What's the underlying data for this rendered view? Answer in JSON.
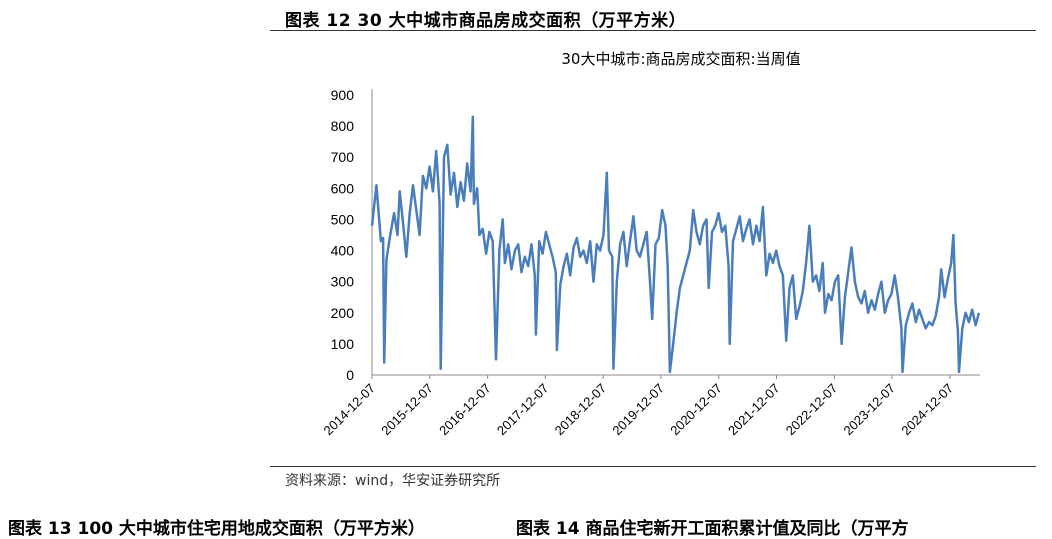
{
  "header": {
    "figure_title": "图表 12 30 大中城市商品房成交面积（万平方米）",
    "source": "资料来源：wind，华安证券研究所"
  },
  "footer": {
    "next_left": "图表 13 100 大中城市住宅用地成交面积（万平方米）",
    "next_right": "图表 14 商品住宅新开工面积累计值及同比（万平方"
  },
  "chart_data": {
    "type": "line",
    "title": "30大中城市:商品房成交面积:当周值",
    "xlabel": "",
    "ylabel": "",
    "ylim": [
      0,
      900
    ],
    "yticks": [
      0,
      100,
      200,
      300,
      400,
      500,
      600,
      700,
      800,
      900
    ],
    "xlim": [
      "2014-12-07",
      "2025-06-15"
    ],
    "xticks": [
      "2014-12-07",
      "2015-12-07",
      "2016-12-07",
      "2017-12-07",
      "2018-12-07",
      "2019-12-07",
      "2020-12-07",
      "2021-12-07",
      "2022-12-07",
      "2023-12-07",
      "2024-12-07"
    ],
    "grid": false,
    "legend": "none",
    "line_color": "#4a7ebb",
    "series": [
      {
        "name": "",
        "points": [
          [
            "2014-12-07",
            480
          ],
          [
            "2015-01-04",
            610
          ],
          [
            "2015-02-01",
            430
          ],
          [
            "2015-02-15",
            440
          ],
          [
            "2015-02-22",
            40
          ],
          [
            "2015-03-08",
            370
          ],
          [
            "2015-03-29",
            440
          ],
          [
            "2015-04-26",
            520
          ],
          [
            "2015-05-17",
            450
          ],
          [
            "2015-05-31",
            590
          ],
          [
            "2015-06-21",
            490
          ],
          [
            "2015-07-12",
            380
          ],
          [
            "2015-08-02",
            520
          ],
          [
            "2015-08-23",
            610
          ],
          [
            "2015-09-13",
            530
          ],
          [
            "2015-10-04",
            450
          ],
          [
            "2015-10-25",
            640
          ],
          [
            "2015-11-15",
            600
          ],
          [
            "2015-12-06",
            670
          ],
          [
            "2015-12-27",
            590
          ],
          [
            "2016-01-17",
            720
          ],
          [
            "2016-02-07",
            550
          ],
          [
            "2016-02-14",
            20
          ],
          [
            "2016-03-06",
            700
          ],
          [
            "2016-03-27",
            740
          ],
          [
            "2016-04-17",
            580
          ],
          [
            "2016-05-08",
            650
          ],
          [
            "2016-05-29",
            540
          ],
          [
            "2016-06-19",
            620
          ],
          [
            "2016-07-10",
            560
          ],
          [
            "2016-07-31",
            680
          ],
          [
            "2016-08-21",
            590
          ],
          [
            "2016-09-04",
            830
          ],
          [
            "2016-09-11",
            550
          ],
          [
            "2016-10-02",
            600
          ],
          [
            "2016-10-16",
            450
          ],
          [
            "2016-11-06",
            470
          ],
          [
            "2016-11-27",
            390
          ],
          [
            "2016-12-18",
            460
          ],
          [
            "2017-01-08",
            430
          ],
          [
            "2017-01-29",
            50
          ],
          [
            "2017-02-19",
            400
          ],
          [
            "2017-03-12",
            500
          ],
          [
            "2017-03-26",
            360
          ],
          [
            "2017-04-16",
            420
          ],
          [
            "2017-05-07",
            340
          ],
          [
            "2017-05-28",
            400
          ],
          [
            "2017-06-18",
            420
          ],
          [
            "2017-07-09",
            330
          ],
          [
            "2017-07-30",
            380
          ],
          [
            "2017-08-20",
            350
          ],
          [
            "2017-09-10",
            420
          ],
          [
            "2017-10-01",
            320
          ],
          [
            "2017-10-08",
            130
          ],
          [
            "2017-10-29",
            430
          ],
          [
            "2017-11-19",
            390
          ],
          [
            "2017-12-10",
            460
          ],
          [
            "2017-12-31",
            420
          ],
          [
            "2018-01-21",
            380
          ],
          [
            "2018-02-11",
            330
          ],
          [
            "2018-02-18",
            80
          ],
          [
            "2018-03-11",
            290
          ],
          [
            "2018-04-01",
            350
          ],
          [
            "2018-04-22",
            390
          ],
          [
            "2018-05-13",
            320
          ],
          [
            "2018-06-03",
            410
          ],
          [
            "2018-06-24",
            440
          ],
          [
            "2018-07-15",
            380
          ],
          [
            "2018-08-05",
            400
          ],
          [
            "2018-08-26",
            360
          ],
          [
            "2018-09-16",
            430
          ],
          [
            "2018-10-07",
            300
          ],
          [
            "2018-10-28",
            420
          ],
          [
            "2018-11-18",
            400
          ],
          [
            "2018-12-09",
            450
          ],
          [
            "2018-12-30",
            650
          ],
          [
            "2019-01-13",
            400
          ],
          [
            "2019-02-03",
            380
          ],
          [
            "2019-02-10",
            20
          ],
          [
            "2019-03-03",
            300
          ],
          [
            "2019-03-24",
            420
          ],
          [
            "2019-04-14",
            460
          ],
          [
            "2019-05-05",
            350
          ],
          [
            "2019-05-26",
            430
          ],
          [
            "2019-06-16",
            510
          ],
          [
            "2019-07-07",
            400
          ],
          [
            "2019-07-28",
            380
          ],
          [
            "2019-08-18",
            420
          ],
          [
            "2019-09-08",
            460
          ],
          [
            "2019-09-29",
            300
          ],
          [
            "2019-10-13",
            180
          ],
          [
            "2019-11-03",
            420
          ],
          [
            "2019-11-24",
            440
          ],
          [
            "2019-12-15",
            530
          ],
          [
            "2020-01-05",
            480
          ],
          [
            "2020-01-19",
            350
          ],
          [
            "2020-02-02",
            10
          ],
          [
            "2020-02-23",
            100
          ],
          [
            "2020-03-15",
            200
          ],
          [
            "2020-04-05",
            280
          ],
          [
            "2020-04-26",
            320
          ],
          [
            "2020-05-17",
            360
          ],
          [
            "2020-06-07",
            400
          ],
          [
            "2020-06-28",
            530
          ],
          [
            "2020-07-19",
            460
          ],
          [
            "2020-08-09",
            420
          ],
          [
            "2020-08-30",
            480
          ],
          [
            "2020-09-20",
            500
          ],
          [
            "2020-10-04",
            280
          ],
          [
            "2020-10-25",
            460
          ],
          [
            "2020-11-15",
            480
          ],
          [
            "2020-12-06",
            520
          ],
          [
            "2020-12-27",
            460
          ],
          [
            "2021-01-17",
            480
          ],
          [
            "2021-02-07",
            350
          ],
          [
            "2021-02-14",
            100
          ],
          [
            "2021-03-07",
            430
          ],
          [
            "2021-03-28",
            470
          ],
          [
            "2021-04-18",
            510
          ],
          [
            "2021-05-09",
            430
          ],
          [
            "2021-05-30",
            470
          ],
          [
            "2021-06-20",
            500
          ],
          [
            "2021-07-11",
            420
          ],
          [
            "2021-08-01",
            480
          ],
          [
            "2021-08-22",
            430
          ],
          [
            "2021-09-12",
            540
          ],
          [
            "2021-10-03",
            320
          ],
          [
            "2021-10-24",
            390
          ],
          [
            "2021-11-14",
            360
          ],
          [
            "2021-12-05",
            400
          ],
          [
            "2021-12-26",
            350
          ],
          [
            "2022-01-16",
            320
          ],
          [
            "2022-02-06",
            110
          ],
          [
            "2022-02-27",
            280
          ],
          [
            "2022-03-20",
            320
          ],
          [
            "2022-04-10",
            180
          ],
          [
            "2022-05-01",
            220
          ],
          [
            "2022-05-22",
            270
          ],
          [
            "2022-06-12",
            360
          ],
          [
            "2022-07-03",
            480
          ],
          [
            "2022-07-24",
            300
          ],
          [
            "2022-08-14",
            320
          ],
          [
            "2022-09-04",
            270
          ],
          [
            "2022-09-25",
            360
          ],
          [
            "2022-10-09",
            200
          ],
          [
            "2022-10-30",
            260
          ],
          [
            "2022-11-20",
            240
          ],
          [
            "2022-12-11",
            300
          ],
          [
            "2023-01-01",
            320
          ],
          [
            "2023-01-22",
            100
          ],
          [
            "2023-02-12",
            250
          ],
          [
            "2023-03-05",
            330
          ],
          [
            "2023-03-26",
            410
          ],
          [
            "2023-04-16",
            300
          ],
          [
            "2023-05-07",
            250
          ],
          [
            "2023-05-28",
            230
          ],
          [
            "2023-06-18",
            270
          ],
          [
            "2023-07-09",
            200
          ],
          [
            "2023-07-30",
            240
          ],
          [
            "2023-08-20",
            210
          ],
          [
            "2023-09-10",
            260
          ],
          [
            "2023-10-01",
            300
          ],
          [
            "2023-10-22",
            200
          ],
          [
            "2023-11-12",
            240
          ],
          [
            "2023-12-03",
            260
          ],
          [
            "2023-12-24",
            320
          ],
          [
            "2024-01-14",
            250
          ],
          [
            "2024-02-04",
            150
          ],
          [
            "2024-02-11",
            10
          ],
          [
            "2024-03-03",
            160
          ],
          [
            "2024-03-24",
            200
          ],
          [
            "2024-04-14",
            230
          ],
          [
            "2024-05-05",
            170
          ],
          [
            "2024-05-26",
            210
          ],
          [
            "2024-06-16",
            180
          ],
          [
            "2024-07-07",
            150
          ],
          [
            "2024-07-28",
            170
          ],
          [
            "2024-08-18",
            160
          ],
          [
            "2024-09-08",
            190
          ],
          [
            "2024-09-29",
            250
          ],
          [
            "2024-10-13",
            340
          ],
          [
            "2024-11-03",
            250
          ],
          [
            "2024-11-24",
            310
          ],
          [
            "2024-12-15",
            360
          ],
          [
            "2024-12-29",
            450
          ],
          [
            "2025-01-12",
            230
          ],
          [
            "2025-01-26",
            140
          ],
          [
            "2025-02-02",
            10
          ],
          [
            "2025-02-23",
            150
          ],
          [
            "2025-03-16",
            200
          ],
          [
            "2025-04-06",
            170
          ],
          [
            "2025-04-27",
            210
          ],
          [
            "2025-05-18",
            160
          ],
          [
            "2025-06-08",
            200
          ]
        ]
      }
    ]
  }
}
